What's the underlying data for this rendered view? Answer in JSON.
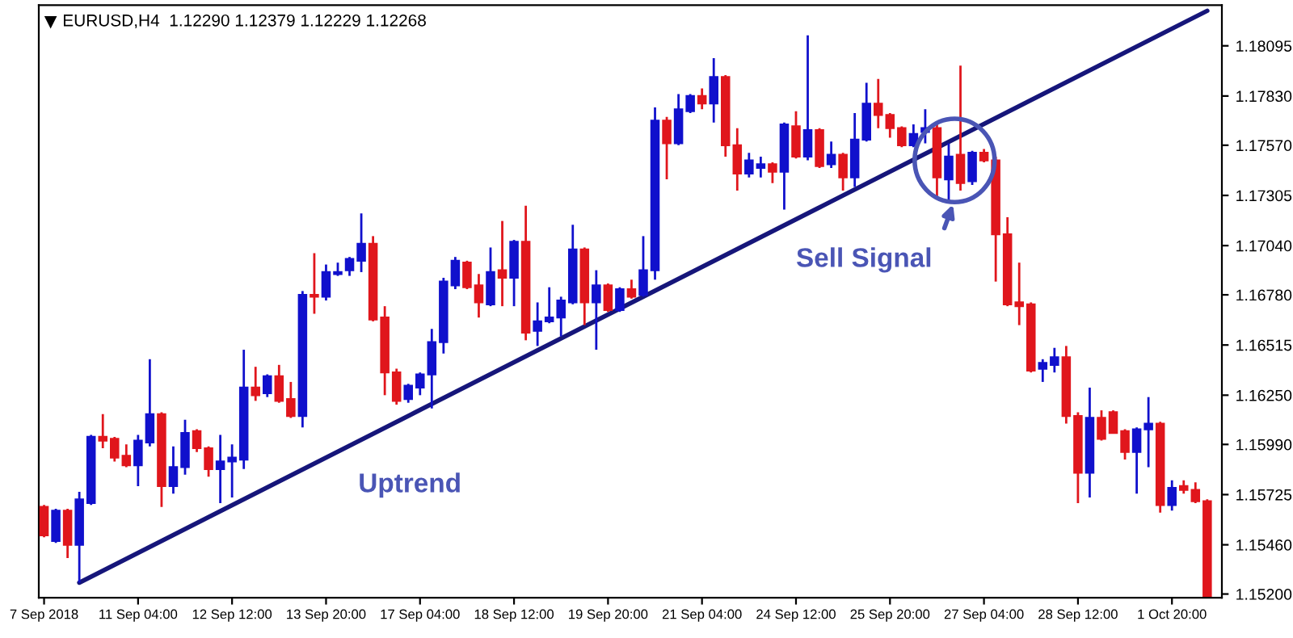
{
  "chart_data": {
    "type": "candlestick",
    "title": "EURUSD,H4  1.12290 1.12379 1.12229 1.12268",
    "annotations": [
      "Uptrend",
      "Sell Signal"
    ],
    "categories": [
      "7 Sep 2018",
      null,
      null,
      null,
      null,
      null,
      null,
      null,
      "11 Sep 04:00",
      null,
      null,
      null,
      null,
      null,
      null,
      null,
      "12 Sep 12:00",
      null,
      null,
      null,
      null,
      null,
      null,
      null,
      "13 Sep 20:00",
      null,
      null,
      null,
      null,
      null,
      null,
      null,
      "17 Sep 04:00",
      null,
      null,
      null,
      null,
      null,
      null,
      null,
      "18 Sep 12:00",
      null,
      null,
      null,
      null,
      null,
      null,
      null,
      "19 Sep 20:00",
      null,
      null,
      null,
      null,
      null,
      null,
      null,
      "21 Sep 04:00",
      null,
      null,
      null,
      null,
      null,
      null,
      null,
      "24 Sep 12:00",
      null,
      null,
      null,
      null,
      null,
      null,
      null,
      "25 Sep 20:00",
      null,
      null,
      null,
      null,
      null,
      null,
      null,
      "27 Sep 04:00",
      null,
      null,
      null,
      null,
      null,
      null,
      null,
      "28 Sep 12:00",
      null,
      null,
      null,
      null,
      null,
      null,
      null,
      "1 Oct 20:00",
      null,
      null,
      null
    ],
    "ohlc": [
      [
        1.1566,
        1.1567,
        1.155,
        1.1551
      ],
      [
        1.1548,
        1.1565,
        1.1547,
        1.1564
      ],
      [
        1.1564,
        1.1565,
        1.1539,
        1.1546
      ],
      [
        1.1546,
        1.1574,
        1.1526,
        1.157
      ],
      [
        1.1568,
        1.1604,
        1.1567,
        1.1603
      ],
      [
        1.1603,
        1.1615,
        1.1597,
        1.1601
      ],
      [
        1.1602,
        1.1603,
        1.159,
        1.1592
      ],
      [
        1.1593,
        1.1599,
        1.1587,
        1.1588
      ],
      [
        1.1588,
        1.1604,
        1.1577,
        1.1601
      ],
      [
        1.16,
        1.1644,
        1.1598,
        1.1615
      ],
      [
        1.1615,
        1.1616,
        1.1566,
        1.1577
      ],
      [
        1.1577,
        1.1598,
        1.1573,
        1.1587
      ],
      [
        1.1587,
        1.1612,
        1.1583,
        1.1605
      ],
      [
        1.1606,
        1.1607,
        1.1595,
        1.1597
      ],
      [
        1.1597,
        1.1598,
        1.1582,
        1.1586
      ],
      [
        1.1586,
        1.1604,
        1.1568,
        1.159
      ],
      [
        1.159,
        1.1599,
        1.1571,
        1.1592
      ],
      [
        1.1591,
        1.1649,
        1.1586,
        1.1629
      ],
      [
        1.1629,
        1.164,
        1.1622,
        1.1625
      ],
      [
        1.1626,
        1.1636,
        1.1624,
        1.1635
      ],
      [
        1.1635,
        1.1641,
        1.1621,
        1.1622
      ],
      [
        1.1623,
        1.1632,
        1.1613,
        1.1614
      ],
      [
        1.1614,
        1.168,
        1.1608,
        1.1678
      ],
      [
        1.1678,
        1.17,
        1.1668,
        1.1677
      ],
      [
        1.1677,
        1.1694,
        1.1675,
        1.169
      ],
      [
        1.1689,
        1.1695,
        1.1688,
        1.169
      ],
      [
        1.1691,
        1.1698,
        1.1688,
        1.1697
      ],
      [
        1.1696,
        1.1721,
        1.169,
        1.1705
      ],
      [
        1.1705,
        1.1709,
        1.1664,
        1.1665
      ],
      [
        1.1666,
        1.1672,
        1.1625,
        1.1637
      ],
      [
        1.1637,
        1.1639,
        1.162,
        1.1622
      ],
      [
        1.1623,
        1.1631,
        1.1621,
        1.163
      ],
      [
        1.1629,
        1.1637,
        1.1625,
        1.1636
      ],
      [
        1.1636,
        1.166,
        1.1618,
        1.1653
      ],
      [
        1.1653,
        1.1687,
        1.1647,
        1.1685
      ],
      [
        1.1683,
        1.1698,
        1.1681,
        1.1696
      ],
      [
        1.1695,
        1.1696,
        1.1681,
        1.1682
      ],
      [
        1.1683,
        1.1689,
        1.1666,
        1.1674
      ],
      [
        1.1673,
        1.1703,
        1.1672,
        1.169
      ],
      [
        1.1691,
        1.1717,
        1.1672,
        1.1687
      ],
      [
        1.1687,
        1.1707,
        1.1672,
        1.1706
      ],
      [
        1.1706,
        1.1725,
        1.1654,
        1.1658
      ],
      [
        1.1659,
        1.1674,
        1.1651,
        1.1664
      ],
      [
        1.1664,
        1.1682,
        1.1663,
        1.1666
      ],
      [
        1.1666,
        1.1677,
        1.1656,
        1.1675
      ],
      [
        1.1674,
        1.1715,
        1.1673,
        1.1702
      ],
      [
        1.1702,
        1.1703,
        1.1662,
        1.1674
      ],
      [
        1.1674,
        1.1691,
        1.1649,
        1.1683
      ],
      [
        1.1683,
        1.1684,
        1.1669,
        1.167
      ],
      [
        1.167,
        1.1682,
        1.1669,
        1.1681
      ],
      [
        1.1681,
        1.1686,
        1.1676,
        1.1677
      ],
      [
        1.1678,
        1.1709,
        1.1677,
        1.1691
      ],
      [
        1.1691,
        1.1777,
        1.1686,
        1.177
      ],
      [
        1.177,
        1.1772,
        1.1739,
        1.1758
      ],
      [
        1.1758,
        1.1784,
        1.1757,
        1.1776
      ],
      [
        1.1775,
        1.1784,
        1.1774,
        1.1783
      ],
      [
        1.1783,
        1.1787,
        1.1776,
        1.1779
      ],
      [
        1.1779,
        1.1803,
        1.1769,
        1.1793
      ],
      [
        1.1793,
        1.1794,
        1.1751,
        1.1757
      ],
      [
        1.1757,
        1.1766,
        1.1733,
        1.1742
      ],
      [
        1.1742,
        1.1753,
        1.174,
        1.1749
      ],
      [
        1.1745,
        1.1751,
        1.174,
        1.1747
      ],
      [
        1.1747,
        1.1748,
        1.1737,
        1.1743
      ],
      [
        1.1743,
        1.1769,
        1.1723,
        1.1768
      ],
      [
        1.1767,
        1.1775,
        1.175,
        1.1751
      ],
      [
        1.1751,
        1.1815,
        1.1749,
        1.1765
      ],
      [
        1.1765,
        1.1766,
        1.1745,
        1.1746
      ],
      [
        1.1747,
        1.1759,
        1.1745,
        1.1752
      ],
      [
        1.1752,
        1.1753,
        1.1733,
        1.174
      ],
      [
        1.174,
        1.1774,
        1.1735,
        1.176
      ],
      [
        1.176,
        1.179,
        1.1759,
        1.1779
      ],
      [
        1.1779,
        1.1792,
        1.1766,
        1.1773
      ],
      [
        1.1773,
        1.1774,
        1.1761,
        1.1766
      ],
      [
        1.1766,
        1.1767,
        1.1756,
        1.1757
      ],
      [
        1.1757,
        1.1768,
        1.1756,
        1.1763
      ],
      [
        1.1764,
        1.1776,
        1.1758,
        1.1766
      ],
      [
        1.1766,
        1.1769,
        1.173,
        1.174
      ],
      [
        1.1739,
        1.1758,
        1.1727,
        1.1751
      ],
      [
        1.1752,
        1.1799,
        1.1733,
        1.1737
      ],
      [
        1.1738,
        1.1754,
        1.1736,
        1.1753
      ],
      [
        1.1753,
        1.1755,
        1.1748,
        1.1749
      ],
      [
        1.1749,
        1.1751,
        1.1685,
        1.171
      ],
      [
        1.171,
        1.1719,
        1.1672,
        1.1673
      ],
      [
        1.1674,
        1.1695,
        1.1662,
        1.1672
      ],
      [
        1.1673,
        1.1674,
        1.1637,
        1.1638
      ],
      [
        1.1639,
        1.1644,
        1.1632,
        1.1642
      ],
      [
        1.1641,
        1.165,
        1.1637,
        1.1645
      ],
      [
        1.1645,
        1.1651,
        1.161,
        1.1614
      ],
      [
        1.1614,
        1.1616,
        1.1568,
        1.1584
      ],
      [
        1.1584,
        1.1629,
        1.1571,
        1.1613
      ],
      [
        1.1613,
        1.1617,
        1.1601,
        1.1602
      ],
      [
        1.1616,
        1.1617,
        1.1605,
        1.1605
      ],
      [
        1.1606,
        1.1607,
        1.1591,
        1.1595
      ],
      [
        1.1595,
        1.1608,
        1.1573,
        1.1607
      ],
      [
        1.1607,
        1.1624,
        1.1587,
        1.161
      ],
      [
        1.161,
        1.1611,
        1.1563,
        1.1567
      ],
      [
        1.1567,
        1.158,
        1.1564,
        1.1576
      ],
      [
        1.1577,
        1.158,
        1.1573,
        1.1575
      ],
      [
        1.1575,
        1.1579,
        1.1568,
        1.1569
      ],
      [
        1.1569,
        1.157,
        1.1519,
        1.1519
      ]
    ],
    "colors": [
      "#e0161c",
      "#1010cc",
      "#e0161c",
      "#1010cc",
      "#1010cc",
      "#e0161c",
      "#e0161c",
      "#e0161c",
      "#1010cc",
      "#1010cc",
      "#e0161c",
      "#1010cc",
      "#1010cc",
      "#e0161c",
      "#e0161c",
      "#1010cc",
      "#1010cc",
      "#1010cc",
      "#e0161c",
      "#1010cc",
      "#e0161c",
      "#e0161c",
      "#1010cc",
      "#e0161c",
      "#1010cc",
      "#1010cc",
      "#1010cc",
      "#1010cc",
      "#e0161c",
      "#e0161c",
      "#e0161c",
      "#1010cc",
      "#1010cc",
      "#1010cc",
      "#1010cc",
      "#1010cc",
      "#e0161c",
      "#e0161c",
      "#1010cc",
      "#e0161c",
      "#1010cc",
      "#e0161c",
      "#1010cc",
      "#1010cc",
      "#1010cc",
      "#1010cc",
      "#e0161c",
      "#1010cc",
      "#e0161c",
      "#1010cc",
      "#e0161c",
      "#1010cc",
      "#1010cc",
      "#e0161c",
      "#1010cc",
      "#1010cc",
      "#e0161c",
      "#1010cc",
      "#e0161c",
      "#e0161c",
      "#1010cc",
      "#1010cc",
      "#e0161c",
      "#1010cc",
      "#e0161c",
      "#1010cc",
      "#e0161c",
      "#1010cc",
      "#e0161c",
      "#1010cc",
      "#1010cc",
      "#e0161c",
      "#e0161c",
      "#e0161c",
      "#1010cc",
      "#1010cc",
      "#e0161c",
      "#1010cc",
      "#e0161c",
      "#1010cc",
      "#e0161c",
      "#e0161c",
      "#e0161c",
      "#e0161c",
      "#e0161c",
      "#1010cc",
      "#1010cc",
      "#e0161c",
      "#e0161c",
      "#1010cc",
      "#e0161c",
      "#e0161c",
      "#e0161c",
      "#1010cc",
      "#1010cc",
      "#e0161c",
      "#1010cc",
      "#e0161c",
      "#e0161c",
      "#e0161c"
    ],
    "series": [
      {
        "type": "line",
        "color": "#16167a",
        "values": [
          null,
          null,
          null,
          1.1526,
          null,
          null,
          null,
          null,
          null,
          null,
          null,
          null,
          null,
          null,
          null,
          null,
          null,
          null,
          null,
          null,
          null,
          null,
          null,
          null,
          null,
          null,
          null,
          null,
          null,
          null,
          null,
          null,
          null,
          null,
          null,
          null,
          null,
          null,
          null,
          null,
          null,
          null,
          null,
          null,
          null,
          null,
          null,
          null,
          null,
          null,
          null,
          null,
          null,
          null,
          null,
          null,
          null,
          null,
          null,
          null,
          null,
          null,
          null,
          null,
          null,
          null,
          null,
          null,
          null,
          null,
          null,
          null,
          null,
          null,
          null,
          null,
          null,
          null,
          null,
          null,
          null,
          null,
          null,
          null,
          null,
          null,
          null,
          null,
          null,
          null,
          null,
          null,
          null,
          null,
          null,
          null,
          null,
          null,
          null,
          1.1828
        ]
      }
    ],
    "ylim": [
      1.1518,
      1.1831
    ],
    "yticks": [
      1.18095,
      {
        "value": 1.1783,
        "label": "1.17830"
      },
      {
        "value": 1.1757,
        "label": "1.17570"
      },
      1.17305,
      {
        "value": 1.1704,
        "label": "1.17040"
      },
      {
        "value": 1.1678,
        "label": "1.16780"
      },
      1.16515,
      {
        "value": 1.1625,
        "label": "1.16250"
      },
      {
        "value": 1.1599,
        "label": "1.15990"
      },
      1.15725,
      {
        "value": 1.1546,
        "label": "1.15460"
      },
      {
        "value": 1.152,
        "label": "1.15200"
      }
    ],
    "grid": false,
    "legend": false
  }
}
